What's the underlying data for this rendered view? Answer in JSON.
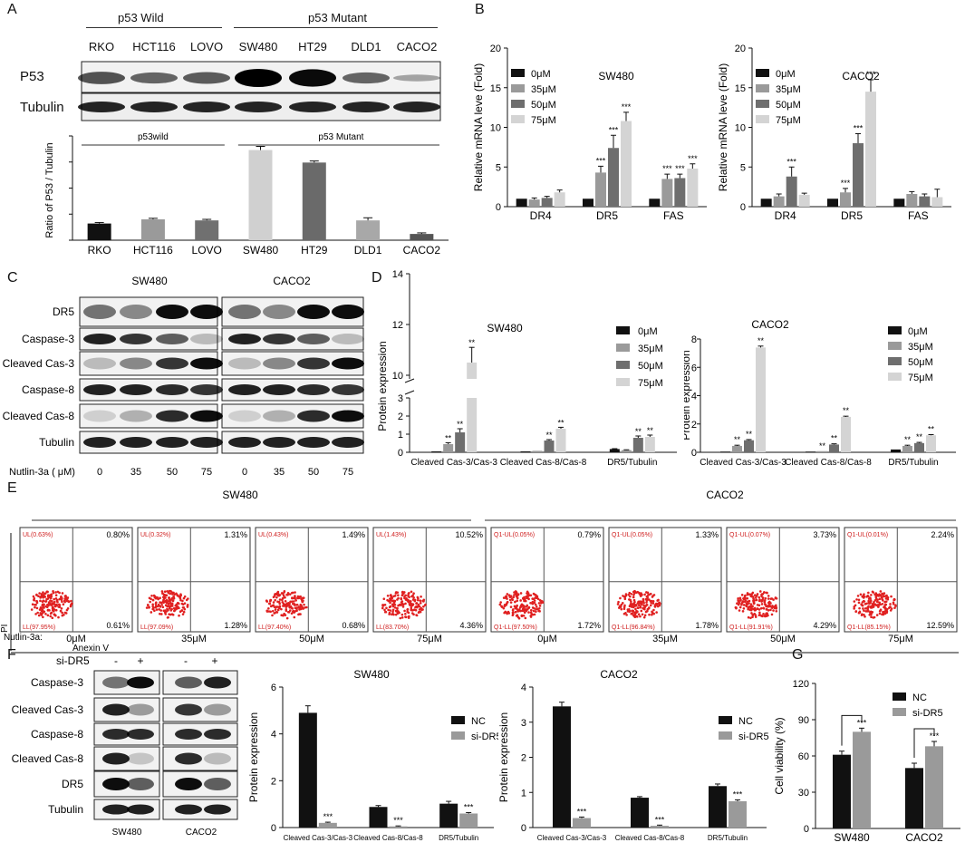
{
  "panel_letters": {
    "a": "A",
    "b": "B",
    "c": "C",
    "d": "D",
    "e": "E",
    "f": "F",
    "g": "G"
  },
  "panelA": {
    "group_wild": "p53 Wild",
    "group_mutant": "p53 Mutant",
    "cell_lines": [
      "RKO",
      "HCT116",
      "LOVO",
      "SW480",
      "HT29",
      "DLD1",
      "CACO2"
    ],
    "blot_rows": [
      "P53",
      "Tubulin"
    ],
    "bar_group_wild": "p53wild",
    "bar_group_mutant": "p53 Mutant"
  },
  "panelC": {
    "headers": [
      "SW480",
      "CACO2"
    ],
    "rows": [
      "DR5",
      "Caspase-3",
      "Cleaved Cas-3",
      "Caspase-8",
      "Cleaved Cas-8",
      "Tubulin"
    ],
    "treatment_label": "Nutlin-3a ( μM)",
    "doses": [
      "0",
      "35",
      "50",
      "75"
    ]
  },
  "panelE": {
    "headers": [
      "SW480",
      "CACO2"
    ],
    "y_axis": "PI",
    "x_axis": "Anexin V",
    "treatment_label": "Nutlin-3a:",
    "dose_labels": [
      "0μM",
      "35μM",
      "50μM",
      "75μM",
      "0μM",
      "35μM",
      "50μM",
      "75μM"
    ],
    "ul_labels": [
      "UL(0.63%)",
      "UL(0.32%)",
      "UL(0.43%)",
      "UL(1.43%)",
      "Q1-UL(0.05%)",
      "Q1-UL(0.05%)",
      "Q1-UL(0.07%)",
      "Q1-UL(0.01%)"
    ],
    "ur_values": [
      "0.80%",
      "1.31%",
      "1.49%",
      "10.52%",
      "0.79%",
      "1.33%",
      "3.73%",
      "2.24%"
    ],
    "ll_labels": [
      "LL(97.95%)",
      "LL(97.09%)",
      "LL(97.40%)",
      "LL(83.70%)",
      "Q1-LL(97.50%)",
      "Q1-LL(96.84%)",
      "Q1-LL(91.91%)",
      "Q1-LL(85.15%)"
    ],
    "lr_values": [
      "0.61%",
      "1.28%",
      "0.68%",
      "4.36%",
      "1.72%",
      "1.78%",
      "4.29%",
      "12.59%"
    ]
  },
  "panelF": {
    "sirna_label": "si-DR5",
    "signs": [
      "-",
      "+",
      "-",
      "+"
    ],
    "rows": [
      "Caspase-3",
      "Cleaved Cas-3",
      "Caspase-8",
      "Cleaved Cas-8",
      "DR5",
      "Tubulin"
    ],
    "footers": [
      "SW480",
      "CACO2"
    ]
  },
  "chart_data": [
    {
      "id": "A-bar",
      "type": "bar",
      "title": "",
      "ylabel": "Ratio of P53 / Tubulin",
      "categories": [
        "RKO",
        "HCT116",
        "LOVO",
        "SW480",
        "HT29",
        "DLD1",
        "CACO2"
      ],
      "values": [
        0.32,
        0.4,
        0.38,
        1.73,
        1.49,
        0.38,
        0.12
      ],
      "errors": [
        0.02,
        0.02,
        0.02,
        0.07,
        0.03,
        0.05,
        0.02
      ],
      "colors": [
        "#111111",
        "#9a9a9a",
        "#707070",
        "#d0d0d0",
        "#6a6a6a",
        "#a8a8a8",
        "#555555"
      ],
      "ylim": [
        0,
        2
      ]
    },
    {
      "id": "B-SW480",
      "type": "bar",
      "title": "SW480",
      "ylabel": "Relative mRNA leve (Fold)",
      "ylim": [
        0,
        20
      ],
      "yticks": [
        "0",
        "5",
        "10",
        "15",
        "20"
      ],
      "categories": [
        "DR4",
        "DR5",
        "FAS"
      ],
      "series": [
        {
          "name": "0μM",
          "values": [
            1,
            1,
            1
          ],
          "errors": [
            0,
            0,
            0
          ]
        },
        {
          "name": "35μM",
          "values": [
            0.9,
            4.3,
            3.5
          ],
          "errors": [
            0.2,
            0.8,
            0.6
          ]
        },
        {
          "name": "50μM",
          "values": [
            1.1,
            7.4,
            3.6
          ],
          "errors": [
            0.2,
            1.6,
            0.5
          ]
        },
        {
          "name": "75μM",
          "values": [
            1.8,
            10.8,
            4.8
          ],
          "errors": [
            0.3,
            1.1,
            0.6
          ]
        }
      ],
      "significance": [
        [
          "",
          "",
          "",
          ""
        ],
        [
          "",
          "***",
          "***",
          "***"
        ],
        [
          "",
          "***",
          "***",
          "***"
        ]
      ]
    },
    {
      "id": "B-CACO2",
      "type": "bar",
      "title": "CACO2",
      "ylabel": "Relative mRNA leve (Fold)",
      "ylim": [
        0,
        20
      ],
      "yticks": [
        "0",
        "5",
        "10",
        "15",
        "20"
      ],
      "categories": [
        "DR4",
        "DR5",
        "FAS"
      ],
      "series": [
        {
          "name": "0μM",
          "values": [
            1,
            1,
            1
          ],
          "errors": [
            0,
            0,
            0
          ]
        },
        {
          "name": "35μM",
          "values": [
            1.3,
            1.8,
            1.6
          ],
          "errors": [
            0.3,
            0.5,
            0.3
          ]
        },
        {
          "name": "50μM",
          "values": [
            3.8,
            8.0,
            1.3
          ],
          "errors": [
            1.2,
            1.2,
            0.3
          ]
        },
        {
          "name": "75μM",
          "values": [
            1.5,
            14.5,
            1.2
          ],
          "errors": [
            0.2,
            1.5,
            1.0
          ]
        }
      ],
      "significance": [
        [
          "",
          "",
          "***",
          ""
        ],
        [
          "",
          "***",
          "***",
          "***"
        ],
        [
          "",
          "",
          "",
          ""
        ]
      ]
    },
    {
      "id": "D-SW480",
      "type": "bar",
      "title": "SW480",
      "ylabel": "Protein expression",
      "broken_axis": true,
      "yticks": [
        "0",
        "1",
        "2",
        "3",
        "10",
        "12",
        "14"
      ],
      "categories": [
        "Cleaved Cas-3/Cas-3",
        "Cleaved Cas-8/Cas-8",
        "DR5/Tubulin"
      ],
      "series": [
        {
          "name": "0μM",
          "values": [
            0.05,
            0.05,
            0.18
          ],
          "errors": [
            0,
            0,
            0.02
          ]
        },
        {
          "name": "35μM",
          "values": [
            0.45,
            0.08,
            0.12
          ],
          "errors": [
            0.08,
            0,
            0.02
          ]
        },
        {
          "name": "50μM",
          "values": [
            1.1,
            0.65,
            0.8
          ],
          "errors": [
            0.2,
            0.05,
            0.1
          ]
        },
        {
          "name": "75μM",
          "values": [
            10.5,
            1.3,
            0.85
          ],
          "errors": [
            0.6,
            0.08,
            0.1
          ]
        }
      ],
      "significance": [
        [
          "",
          "**",
          "**",
          "**"
        ],
        [
          "",
          "",
          "**",
          "**"
        ],
        [
          "",
          "",
          "**",
          "**"
        ]
      ]
    },
    {
      "id": "D-CACO2",
      "type": "bar",
      "title": "CACO2",
      "ylabel": "Protein expression",
      "ylim": [
        0,
        8
      ],
      "yticks": [
        "0",
        "2",
        "4",
        "6",
        "8"
      ],
      "categories": [
        "Cleaved Cas-3/Cas-3",
        "Cleaved Cas-8/Cas-8",
        "DR5/Tubulin"
      ],
      "series": [
        {
          "name": "0μM",
          "values": [
            0.05,
            0.05,
            0.2
          ],
          "errors": [
            0,
            0,
            0
          ]
        },
        {
          "name": "35μM",
          "values": [
            0.45,
            0.08,
            0.45
          ],
          "errors": [
            0.05,
            0,
            0.05
          ]
        },
        {
          "name": "50μM",
          "values": [
            0.85,
            0.55,
            0.65
          ],
          "errors": [
            0.05,
            0.05,
            0.05
          ]
        },
        {
          "name": "75μM",
          "values": [
            7.4,
            2.5,
            1.2
          ],
          "errors": [
            0.1,
            0.05,
            0.05
          ]
        }
      ],
      "significance": [
        [
          "",
          "**",
          "**",
          "**"
        ],
        [
          "",
          "**",
          "**",
          "**"
        ],
        [
          "",
          "**",
          "**",
          "**"
        ]
      ]
    },
    {
      "id": "F-SW480",
      "type": "bar",
      "title": "SW480",
      "ylabel": "Protein expression",
      "ylim": [
        0,
        6
      ],
      "yticks": [
        "0",
        "2",
        "4",
        "6"
      ],
      "categories": [
        "Cleaved Cas-3/Cas-3",
        "Cleaved Cas-8/Cas-8",
        "DR5/Tubulin"
      ],
      "series": [
        {
          "name": "NC",
          "values": [
            4.9,
            0.88,
            1.02
          ],
          "errors": [
            0.3,
            0.06,
            0.1
          ]
        },
        {
          "name": "si-DR5",
          "values": [
            0.2,
            0.05,
            0.6
          ],
          "errors": [
            0.03,
            0.02,
            0.04
          ]
        }
      ],
      "significance": [
        [
          "",
          "***"
        ],
        [
          "",
          "***"
        ],
        [
          "",
          "***"
        ]
      ]
    },
    {
      "id": "F-CACO2",
      "type": "bar",
      "title": "CACO2",
      "ylabel": "Protein expression",
      "ylim": [
        0,
        4
      ],
      "yticks": [
        "0",
        "1",
        "2",
        "3",
        "4"
      ],
      "categories": [
        "Cleaved Cas-3/Cas-3",
        "Cleaved Cas-8/Cas-8",
        "DR5/Tubulin"
      ],
      "series": [
        {
          "name": "NC",
          "values": [
            3.45,
            0.85,
            1.18
          ],
          "errors": [
            0.12,
            0.03,
            0.06
          ]
        },
        {
          "name": "si-DR5",
          "values": [
            0.27,
            0.05,
            0.75
          ],
          "errors": [
            0.03,
            0.02,
            0.04
          ]
        }
      ],
      "significance": [
        [
          "",
          "***"
        ],
        [
          "",
          "***"
        ],
        [
          "",
          "***"
        ]
      ]
    },
    {
      "id": "G",
      "type": "bar",
      "title": "",
      "ylabel": "Cell viability (%)",
      "ylim": [
        0,
        120
      ],
      "yticks": [
        "0",
        "30",
        "60",
        "90",
        "120"
      ],
      "categories": [
        "SW480",
        "CACO2"
      ],
      "series": [
        {
          "name": "NC",
          "values": [
            61,
            50
          ],
          "errors": [
            3,
            4
          ]
        },
        {
          "name": "si-DR5",
          "values": [
            80,
            68
          ],
          "errors": [
            3,
            4
          ]
        }
      ],
      "significance": [
        [
          "",
          "***"
        ],
        [
          "",
          "***"
        ]
      ]
    }
  ],
  "grouped_palette": [
    "#111111",
    "#9a9a9a",
    "#6e6e6e",
    "#d4d4d4"
  ]
}
